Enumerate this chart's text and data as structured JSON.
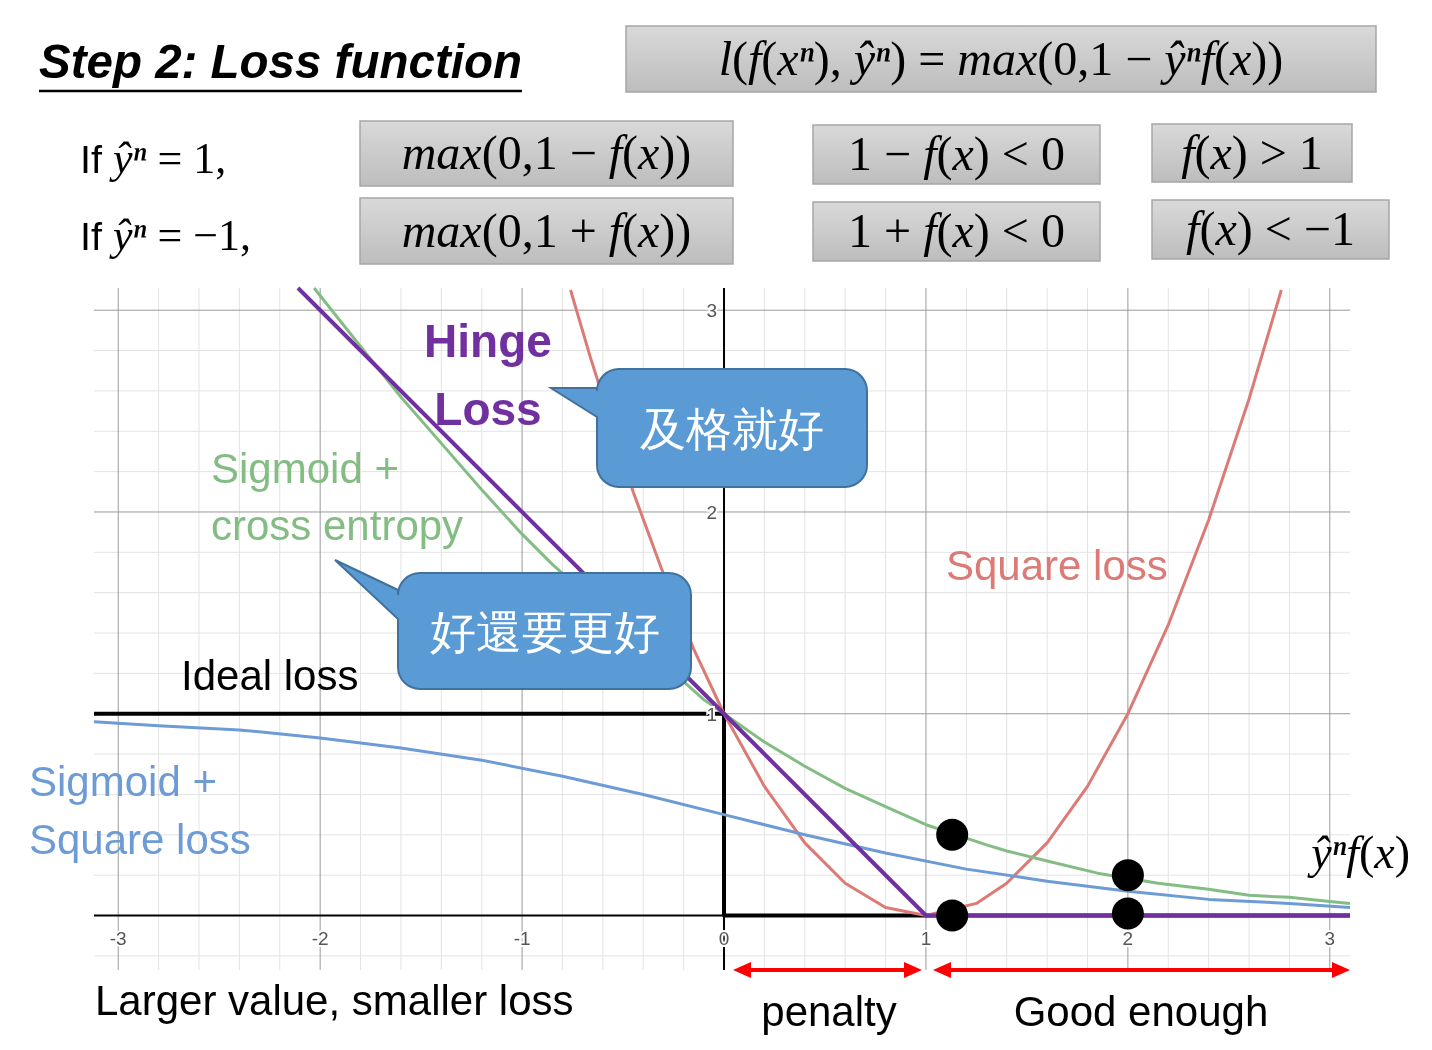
{
  "chart_data": {
    "type": "line",
    "title": "Step 2: Loss function",
    "xlabel": "ŷⁿf(x)",
    "xlim": [
      -3.12,
      3.1
    ],
    "ylim": [
      -0.27,
      3.11
    ],
    "xticks": [
      -3,
      -2,
      -1,
      0,
      1,
      2,
      3
    ],
    "yticks": [
      1,
      2,
      3
    ],
    "grid": true,
    "series": [
      {
        "name": "Ideal loss",
        "type": "step",
        "color": "#000000",
        "x": [
          -3.12,
          0,
          3.1
        ],
        "values": [
          1,
          0,
          0
        ]
      },
      {
        "name": "Square loss",
        "color": "#dc7a76",
        "x": [
          -0.76,
          -0.66,
          -0.45,
          -0.31,
          -0.15,
          0,
          0.2,
          0.4,
          0.6,
          0.8,
          1,
          1.25,
          1.4,
          1.6,
          1.8,
          2,
          2.2,
          2.4,
          2.6,
          2.76
        ],
        "values": [
          3.1,
          2.76,
          2.1,
          1.72,
          1.32,
          1,
          0.64,
          0.36,
          0.16,
          0.04,
          0,
          0.06,
          0.16,
          0.36,
          0.64,
          1,
          1.44,
          1.96,
          2.56,
          3.1
        ]
      },
      {
        "name": "Sigmoid + Square loss",
        "color": "#6c9bd6",
        "x": [
          -3.12,
          -2.8,
          -2.4,
          -2,
          -1.6,
          -1.2,
          -0.8,
          -0.4,
          0,
          0.4,
          0.8,
          1.2,
          1.6,
          2,
          2.4,
          2.8,
          3.1
        ],
        "values": [
          0.96,
          0.94,
          0.92,
          0.88,
          0.83,
          0.77,
          0.69,
          0.6,
          0.5,
          0.4,
          0.31,
          0.23,
          0.17,
          0.12,
          0.08,
          0.06,
          0.04
        ]
      },
      {
        "name": "Sigmoid + cross entropy",
        "color": "#84bd84",
        "x": [
          -2.03,
          -1.8,
          -1.6,
          -1.4,
          -1.2,
          -1,
          -0.85,
          -0.1,
          0,
          0.2,
          0.4,
          0.6,
          0.8,
          1,
          1.3,
          1.4,
          1.6,
          1.85,
          2.15,
          2.4,
          2.6,
          2.8,
          3,
          3.1
        ],
        "values": [
          3.11,
          2.82,
          2.57,
          2.34,
          2.11,
          1.89,
          1.74,
          1.07,
          1,
          0.86,
          0.74,
          0.63,
          0.54,
          0.45,
          0.35,
          0.32,
          0.27,
          0.21,
          0.16,
          0.13,
          0.1,
          0.09,
          0.07,
          0.06
        ]
      },
      {
        "name": "Hinge Loss",
        "color": "#7030a0",
        "x": [
          -2.11,
          1,
          3.1
        ],
        "values": [
          3.11,
          0,
          0
        ]
      },
      {
        "type": "scatter",
        "color": "#000000",
        "marker": "circle",
        "x": [
          1.13,
          1.13,
          2,
          2
        ],
        "values": [
          0.4,
          0,
          0.2,
          0.01
        ]
      }
    ],
    "annotations": [
      "l(f(xⁿ), ŷⁿ) = max(0,1 − ŷⁿf(x))",
      "If ŷⁿ = 1,",
      "max(0,1 − f(x))",
      "1 − f(x) < 0",
      "f(x) > 1",
      "If ŷⁿ = −1,",
      "max(0,1 + f(x))",
      "1 + f(x) < 0",
      "f(x) < −1",
      "及格就好",
      "好還要更好",
      "Larger value, smaller loss",
      "penalty",
      "Good enough"
    ]
  }
}
